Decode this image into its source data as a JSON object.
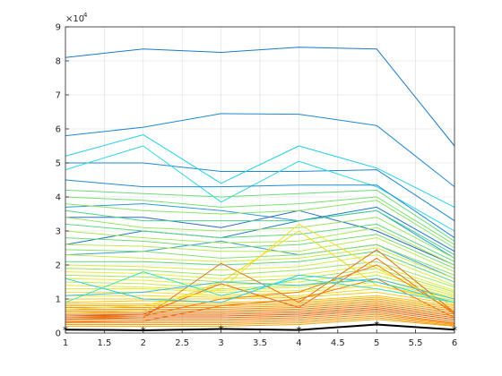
{
  "chart_data": {
    "type": "line",
    "title": "",
    "xlabel": "",
    "ylabel": "",
    "y_exponent_label": "×10",
    "y_exponent_power": "4",
    "xlim": [
      1,
      6
    ],
    "ylim": [
      0,
      90000
    ],
    "grid": true,
    "legend": "none",
    "x": [
      1,
      2,
      3,
      4,
      5,
      6
    ],
    "x_ticks": [
      "1",
      "1.5",
      "2",
      "2.5",
      "3",
      "3.5",
      "4",
      "4.5",
      "5",
      "5.5",
      "6"
    ],
    "y_ticks": [
      "0",
      "1",
      "2",
      "3",
      "4",
      "5",
      "6",
      "7",
      "8",
      "9"
    ],
    "x_tick_values": [
      1,
      1.5,
      2,
      2.5,
      3,
      3.5,
      4,
      4.5,
      5,
      5.5,
      6
    ],
    "y_tick_values": [
      0,
      10000,
      20000,
      30000,
      40000,
      50000,
      60000,
      70000,
      80000,
      90000
    ],
    "colors": {
      "axis": "#262626",
      "grid": "#dcdcdc",
      "highlight": "#000000"
    },
    "series": [
      {
        "values": [
          81000,
          83500,
          82500,
          84000,
          83500,
          55000
        ],
        "color": "#1a78c8"
      },
      {
        "values": [
          58000,
          60500,
          64500,
          64300,
          61000,
          43000
        ],
        "color": "#1f88d0"
      },
      {
        "values": [
          50000,
          50000,
          47500,
          47500,
          48000,
          33000
        ],
        "color": "#1e8ad2"
      },
      {
        "values": [
          52000,
          58300,
          44000,
          55000,
          48500,
          37000
        ],
        "color": "#22d0e8"
      },
      {
        "values": [
          48000,
          55000,
          38500,
          50500,
          43000,
          30000
        ],
        "color": "#30d8e0"
      },
      {
        "values": [
          45000,
          43000,
          43000,
          43500,
          43500,
          28000
        ],
        "color": "#1f8ad8"
      },
      {
        "values": [
          37000,
          38000,
          36000,
          33000,
          36000,
          22000
        ],
        "color": "#2a9cd8"
      },
      {
        "values": [
          34000,
          34000,
          31000,
          36000,
          30000,
          20000
        ],
        "color": "#2e6cc0"
      },
      {
        "values": [
          26000,
          30000,
          28000,
          33000,
          37000,
          24000
        ],
        "color": "#1f78c8"
      },
      {
        "values": [
          23000,
          24000,
          27000,
          23000,
          26000,
          16000
        ],
        "color": "#3a9ee0"
      },
      {
        "values": [
          42000,
          41000,
          40000,
          41000,
          42000,
          27000
        ],
        "color": "#6adc7a"
      },
      {
        "values": [
          40000,
          39000,
          37000,
          38000,
          40000,
          26000
        ],
        "color": "#7ae070"
      },
      {
        "values": [
          38000,
          36000,
          35000,
          36000,
          39000,
          25000
        ],
        "color": "#8ae468"
      },
      {
        "values": [
          36000,
          33000,
          33000,
          33000,
          36000,
          23000
        ],
        "color": "#4cd48a"
      },
      {
        "values": [
          34000,
          31000,
          30000,
          31000,
          34000,
          22000
        ],
        "color": "#9ae660"
      },
      {
        "values": [
          32000,
          30000,
          28000,
          29000,
          32000,
          21000
        ],
        "color": "#5cd880"
      },
      {
        "values": [
          30000,
          28000,
          26500,
          27000,
          31000,
          20000
        ],
        "color": "#aae858"
      },
      {
        "values": [
          28000,
          27000,
          25000,
          26000,
          29000,
          19000
        ],
        "color": "#70dc70"
      },
      {
        "values": [
          26000,
          25500,
          24000,
          24000,
          28000,
          18000
        ],
        "color": "#b8ea50"
      },
      {
        "values": [
          24500,
          24000,
          22000,
          23000,
          26000,
          17000
        ],
        "color": "#88e068"
      },
      {
        "values": [
          23000,
          22000,
          21000,
          22000,
          25000,
          16000
        ],
        "color": "#c8ec48"
      },
      {
        "values": [
          21000,
          21000,
          20000,
          21000,
          24000,
          15000
        ],
        "color": "#60d878"
      },
      {
        "values": [
          20000,
          19500,
          18500,
          19500,
          23000,
          14000
        ],
        "color": "#d4ee40"
      },
      {
        "values": [
          19000,
          18500,
          17000,
          18500,
          21000,
          13500
        ],
        "color": "#9ce460"
      },
      {
        "values": [
          18000,
          17500,
          16000,
          17000,
          20000,
          12500
        ],
        "color": "#e0f038"
      },
      {
        "values": [
          17000,
          16500,
          15000,
          16000,
          19000,
          12000
        ],
        "color": "#a8e658"
      },
      {
        "values": [
          16000,
          15500,
          14000,
          15000,
          18000,
          11500
        ],
        "color": "#e8ec30"
      },
      {
        "values": [
          15000,
          14500,
          13000,
          14000,
          17000,
          11000
        ],
        "color": "#c0ea4c"
      },
      {
        "values": [
          14000,
          13500,
          12500,
          13500,
          16000,
          10500
        ],
        "color": "#f0e828"
      },
      {
        "values": [
          13000,
          13000,
          12000,
          12500,
          15000,
          10000
        ],
        "color": "#d8ee3c"
      },
      {
        "values": [
          12000,
          12000,
          11000,
          12000,
          14000,
          9500
        ],
        "color": "#f4e020"
      },
      {
        "values": [
          11000,
          11000,
          10500,
          11000,
          13000,
          9000
        ],
        "color": "#f6d818"
      },
      {
        "values": [
          10000,
          10000,
          10000,
          10500,
          12000,
          8500
        ],
        "color": "#f8cc14"
      },
      {
        "values": [
          9000,
          9500,
          9000,
          9500,
          11000,
          8000
        ],
        "color": "#f8c010"
      },
      {
        "values": [
          8500,
          8500,
          8500,
          9000,
          10500,
          7500
        ],
        "color": "#f8b40e"
      },
      {
        "values": [
          8000,
          8000,
          8000,
          8500,
          10000,
          7000
        ],
        "color": "#f6a80c"
      },
      {
        "values": [
          7500,
          7500,
          7500,
          8000,
          9500,
          6500
        ],
        "color": "#f49c0a"
      },
      {
        "values": [
          7000,
          7000,
          7000,
          7500,
          9000,
          6000
        ],
        "color": "#f29008"
      },
      {
        "values": [
          6500,
          6500,
          6500,
          7000,
          8500,
          5500
        ],
        "color": "#f08406"
      },
      {
        "values": [
          6000,
          6000,
          6000,
          6500,
          8000,
          5000
        ],
        "color": "#ee7804"
      },
      {
        "values": [
          5500,
          5500,
          5500,
          6000,
          7500,
          4500
        ],
        "color": "#ec6c02"
      },
      {
        "values": [
          5000,
          5000,
          5000,
          5500,
          7000,
          4000
        ],
        "color": "#ea6000"
      },
      {
        "values": [
          4500,
          4500,
          4500,
          5000,
          6500,
          3500
        ],
        "color": "#f07010"
      },
      {
        "values": [
          4000,
          4000,
          4000,
          4500,
          6000,
          3000
        ],
        "color": "#f68010"
      },
      {
        "values": [
          3500,
          3500,
          3500,
          4000,
          5500,
          2800
        ],
        "color": "#f88a10"
      },
      {
        "values": [
          3000,
          3000,
          3000,
          3500,
          5000,
          2500
        ],
        "color": "#f69412"
      },
      {
        "values": [
          2500,
          2500,
          2500,
          3000,
          4500,
          2200
        ],
        "color": "#f49e14"
      },
      {
        "values": [
          2000,
          2000,
          2000,
          2500,
          4000,
          2000
        ],
        "color": "#f2a816"
      },
      {
        "values": [
          4000,
          4500,
          20500,
          9000,
          24500,
          6000
        ],
        "color": "#e07020"
      },
      {
        "values": [
          5000,
          5500,
          14500,
          7500,
          22000,
          5500
        ],
        "color": "#e86a1a"
      },
      {
        "values": [
          6000,
          6500,
          15000,
          30000,
          14000,
          9000
        ],
        "color": "#f0d820"
      },
      {
        "values": [
          7000,
          8000,
          13000,
          32000,
          19000,
          8000
        ],
        "color": "#f6e030"
      },
      {
        "values": [
          4500,
          5000,
          10000,
          12000,
          20000,
          6000
        ],
        "color": "#ec8018"
      },
      {
        "values": [
          3200,
          3500,
          8000,
          10000,
          16000,
          4500
        ],
        "color": "#f07818"
      },
      {
        "values": [
          16000,
          10000,
          9000,
          17000,
          15000,
          9000
        ],
        "color": "#22d0e8"
      },
      {
        "values": [
          11000,
          12000,
          15000,
          14000,
          16000,
          10000
        ],
        "color": "#3ac0e0"
      },
      {
        "values": [
          9000,
          18000,
          11000,
          16000,
          13000,
          9000
        ],
        "color": "#3ae0c8"
      },
      {
        "values": [
          1000,
          800,
          1200,
          900,
          2500,
          1000
        ],
        "color": "#000000",
        "marker": "*",
        "width": 2
      }
    ]
  }
}
